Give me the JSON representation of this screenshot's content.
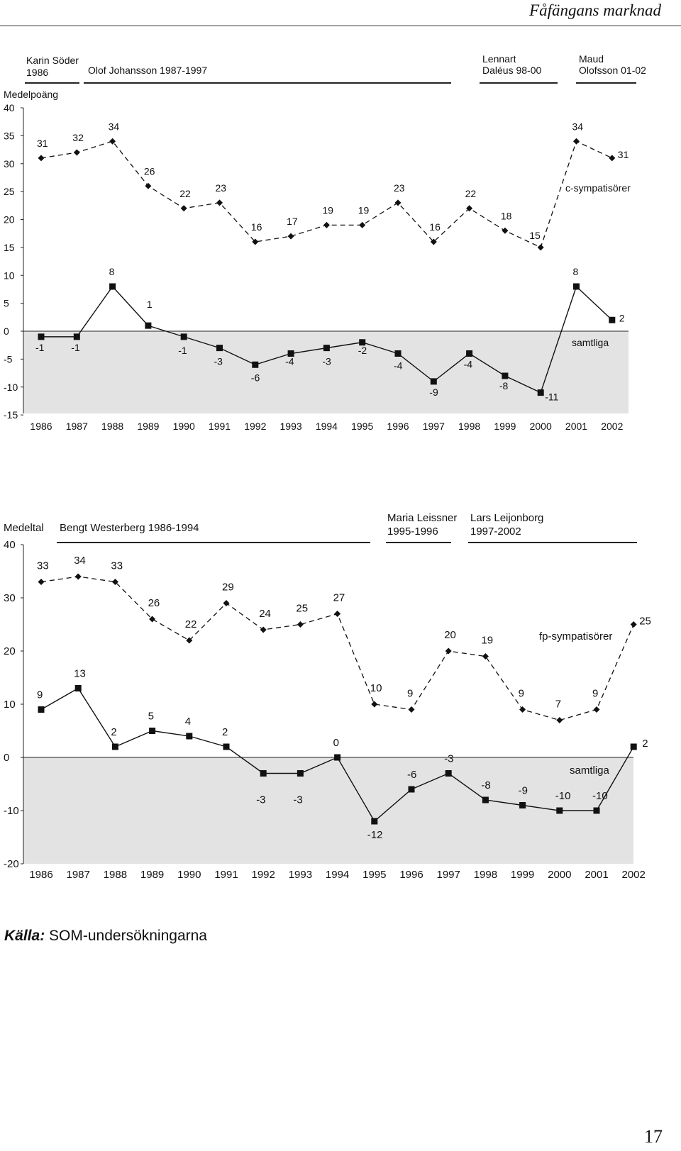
{
  "running_head": "Fåfängans marknad",
  "page_number": "17",
  "source": {
    "prefix": "Källa:",
    "text": "SOM-undersökningarna"
  },
  "chart_data": [
    {
      "type": "line",
      "ylabel": "Medelpoäng",
      "x": [
        1986,
        1987,
        1988,
        1989,
        1990,
        1991,
        1992,
        1993,
        1994,
        1995,
        1996,
        1997,
        1998,
        1999,
        2000,
        2001,
        2002
      ],
      "yticks": [
        40,
        35,
        30,
        25,
        20,
        15,
        10,
        5,
        0,
        -5,
        -10,
        -15
      ],
      "periods": [
        {
          "lines": [
            "Karin Söder",
            "1986"
          ]
        },
        {
          "lines": [
            "Olof Johansson 1987-1997"
          ]
        },
        {
          "lines": [
            "Lennart",
            "Daléus 98-00"
          ]
        },
        {
          "lines": [
            "Maud",
            "Olofsson 01-02"
          ]
        }
      ],
      "series": [
        {
          "name": "c-sympatisörer",
          "style": "dashed",
          "marker": "diamond",
          "values": [
            31,
            32,
            34,
            26,
            22,
            23,
            16,
            17,
            19,
            19,
            23,
            16,
            22,
            18,
            15,
            34,
            31
          ]
        },
        {
          "name": "samtliga",
          "style": "solid",
          "marker": "square",
          "values": [
            -1,
            -1,
            8,
            1,
            -1,
            -3,
            -6,
            -4,
            -3,
            -2,
            -4,
            -9,
            -4,
            -8,
            -11,
            8,
            2
          ]
        }
      ]
    },
    {
      "type": "line",
      "ylabel": "Medeltal",
      "x": [
        1986,
        1987,
        1988,
        1989,
        1990,
        1991,
        1992,
        1993,
        1994,
        1995,
        1996,
        1997,
        1998,
        1999,
        2000,
        2001,
        2002
      ],
      "yticks": [
        40,
        30,
        20,
        10,
        0,
        -10,
        -20
      ],
      "periods": [
        {
          "lines": [
            "Bengt Westerberg 1986-1994"
          ]
        },
        {
          "lines": [
            "Maria Leissner",
            "1995-1996"
          ]
        },
        {
          "lines": [
            "Lars Leijonborg",
            "1997-2002"
          ]
        }
      ],
      "series": [
        {
          "name": "fp-sympatisörer",
          "style": "dashed",
          "marker": "diamond",
          "values": [
            33,
            34,
            33,
            26,
            22,
            29,
            24,
            25,
            27,
            10,
            9,
            20,
            19,
            9,
            7,
            9,
            25
          ]
        },
        {
          "name": "samtliga",
          "style": "solid",
          "marker": "square",
          "values": [
            9,
            13,
            2,
            5,
            4,
            2,
            -3,
            -3,
            0,
            -12,
            -6,
            -3,
            -8,
            -9,
            -10,
            -10,
            2
          ]
        }
      ]
    }
  ]
}
